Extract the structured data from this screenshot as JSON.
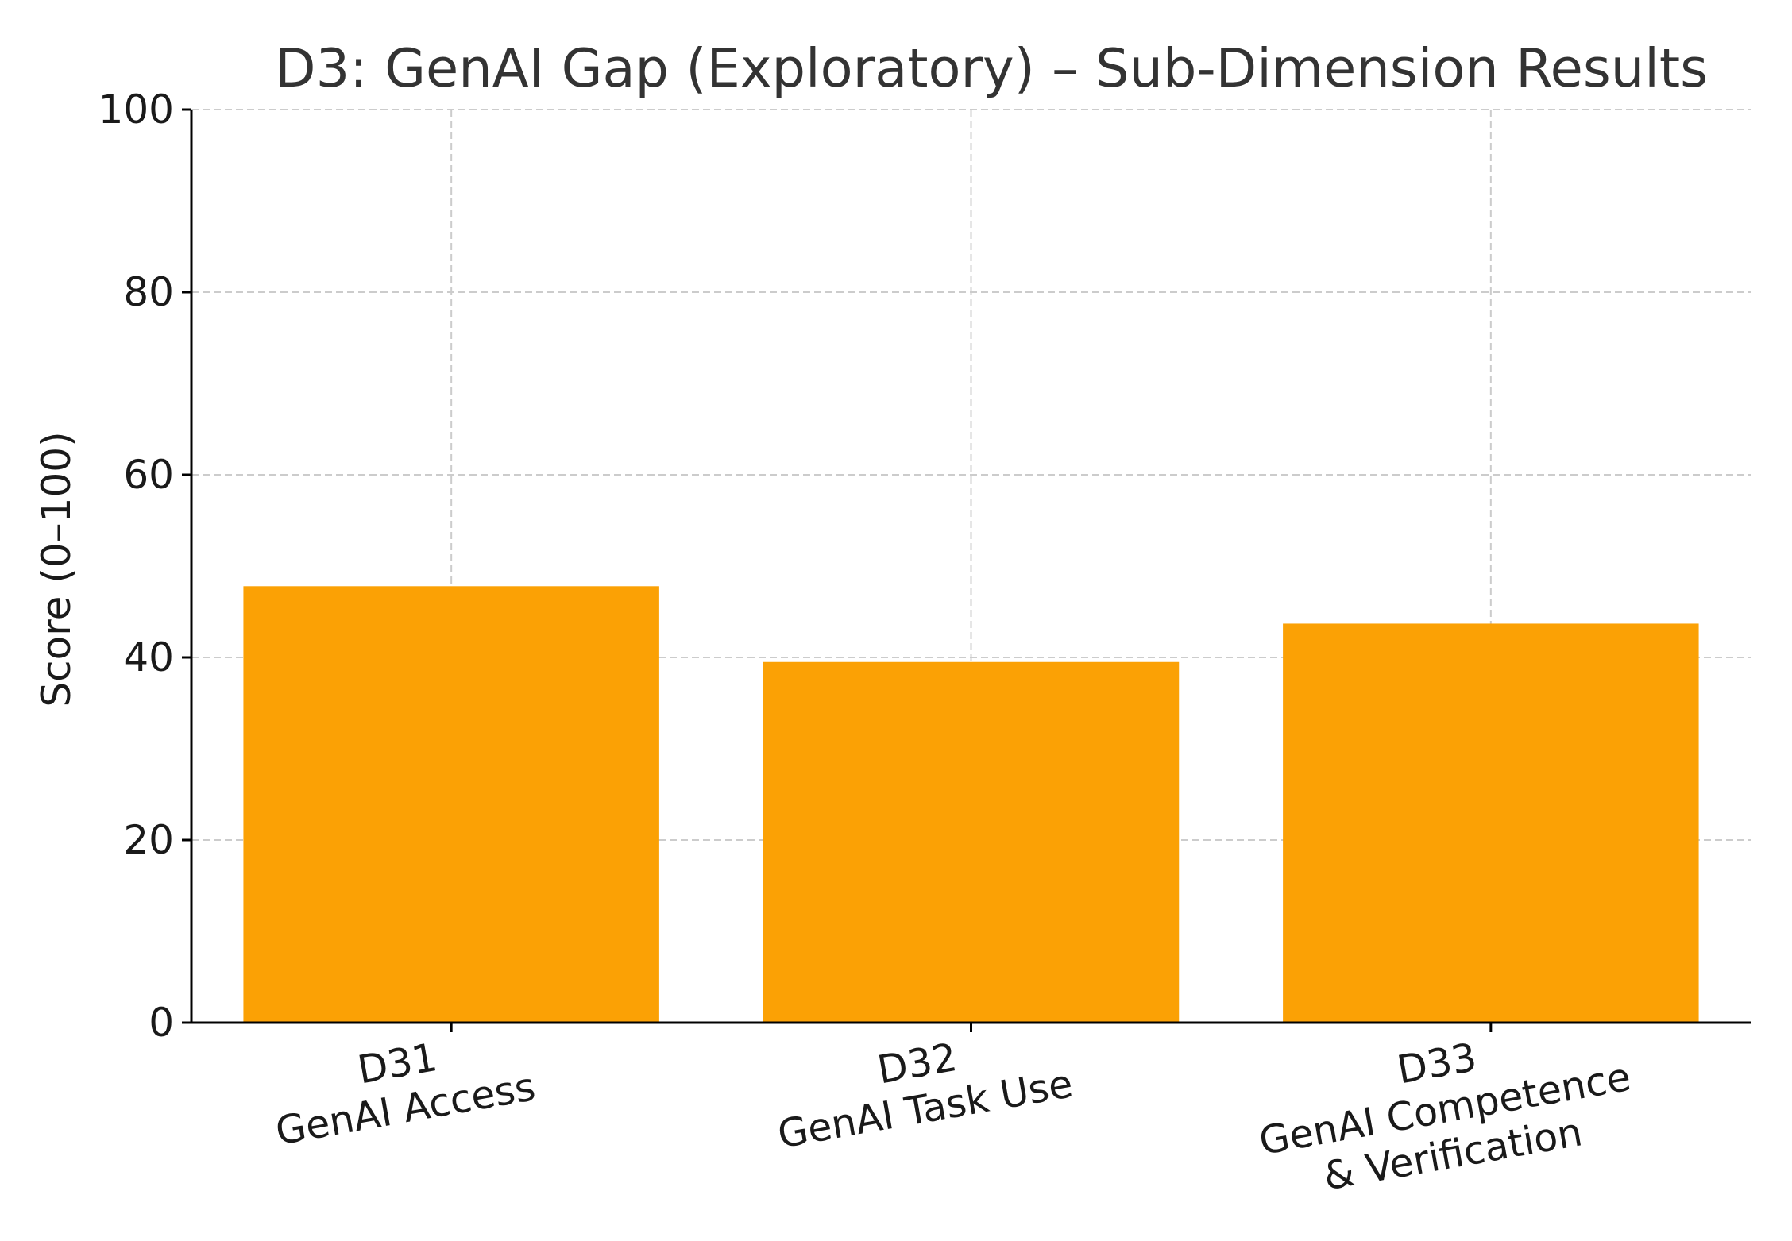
{
  "chart_data": {
    "type": "bar",
    "title": "D3: GenAI Gap (Exploratory) – Sub-Dimension Results",
    "xlabel": "",
    "ylabel": "Score (0–100)",
    "ylim": [
      0,
      100
    ],
    "yticks": [
      0,
      20,
      40,
      60,
      80,
      100
    ],
    "grid": true,
    "categories": [
      [
        "D31",
        "GenAI Access"
      ],
      [
        "D32",
        "GenAI Task Use"
      ],
      [
        "D33",
        "GenAI Competence",
        "& Verification"
      ]
    ],
    "values": [
      47.8,
      39.5,
      43.7
    ],
    "bar_color": "#fba105"
  }
}
